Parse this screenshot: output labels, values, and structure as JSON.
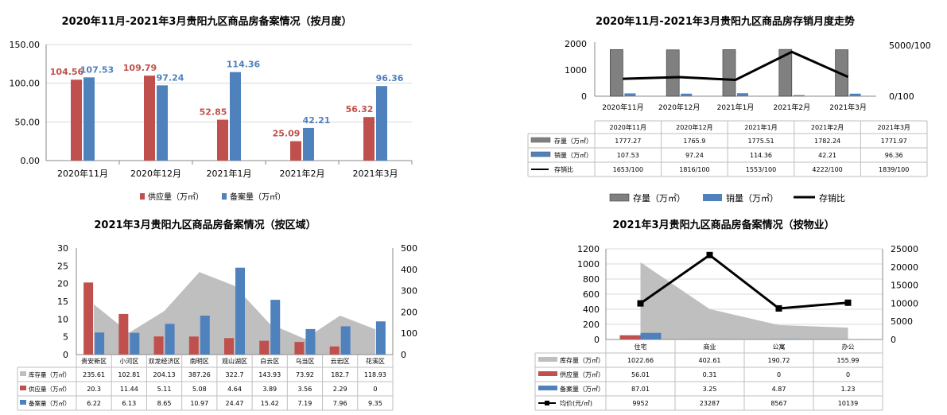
{
  "colors": {
    "supply": "#C0504D",
    "record": "#4F81BD",
    "stock": "#808080",
    "stock_area": "#BFBFBF",
    "price": "#000000"
  },
  "chart_data": [
    {
      "id": "c1",
      "type": "bar",
      "title": "2020年11月-2021年3月贵阳九区商品房备案情况（按月度）",
      "categories": [
        "2020年11月",
        "2020年12月",
        "2021年1月",
        "2021年2月",
        "2021年3月"
      ],
      "series": [
        {
          "name": "供应量（万㎡）",
          "values": [
            104.56,
            109.79,
            52.85,
            25.09,
            56.32
          ],
          "labels": [
            "104.56",
            "109.79",
            "52.85",
            "25.09",
            "56.32"
          ]
        },
        {
          "name": "备案量（万㎡）",
          "values": [
            107.53,
            97.24,
            114.36,
            42.21,
            96.36
          ],
          "labels": [
            "107.53",
            "97.24",
            "114.36",
            "42.21",
            "96.36"
          ]
        }
      ],
      "ylim": [
        0,
        150
      ],
      "yticks": [
        "0.00",
        "50.00",
        "100.00",
        "150.00"
      ]
    },
    {
      "id": "c2",
      "type": "bar",
      "title": "2020年11月-2021年3月贵阳九区商品房存销月度走势",
      "categories": [
        "2020年11月",
        "2020年12月",
        "2021年1月",
        "2021年2月",
        "2021年3月"
      ],
      "series": [
        {
          "name": "存量（万㎡）",
          "values": [
            1777.27,
            1765.9,
            1775.51,
            1782.24,
            1771.97
          ],
          "labels": [
            "1777.27",
            "1765.9",
            "1775.51",
            "1782.24",
            "1771.97"
          ]
        },
        {
          "name": "销量（万㎡）",
          "values": [
            107.53,
            97.24,
            114.36,
            42.21,
            96.36
          ],
          "labels": [
            "107.53",
            "97.24",
            "114.36",
            "42.21",
            "96.36"
          ]
        },
        {
          "name": "存销比",
          "values": [
            1653,
            1816,
            1553,
            4222,
            1839
          ],
          "labels": [
            "1653/100",
            "1816/100",
            "1553/100",
            "4222/100",
            "1839/100"
          ]
        }
      ],
      "ylim": [
        0,
        2000
      ],
      "yticks": [
        "0",
        "1000",
        "2000"
      ],
      "y2lim": [
        0,
        5000
      ],
      "y2ticks": [
        "0/100",
        "5000/100"
      ],
      "legend": [
        "存量（万㎡）",
        "销量（万㎡）",
        "存销比"
      ]
    },
    {
      "id": "c3",
      "type": "bar",
      "title": "2021年3月贵阳九区商品房备案情况（按区域）",
      "categories": [
        "贵安新区",
        "小河区",
        "双龙经济区",
        "南明区",
        "观山湖区",
        "白云区",
        "乌当区",
        "云岩区",
        "花溪区"
      ],
      "series": [
        {
          "name": "库存量（万㎡）",
          "values": [
            235.61,
            102.81,
            204.13,
            387.26,
            322.7,
            143.93,
            73.92,
            182.7,
            118.93
          ],
          "labels": [
            "235.61",
            "102.81",
            "204.13",
            "387.26",
            "322.7",
            "143.93",
            "73.92",
            "182.7",
            "118.93"
          ]
        },
        {
          "name": "供应量（万㎡）",
          "values": [
            20.3,
            11.44,
            5.11,
            5.08,
            4.64,
            3.89,
            3.56,
            2.29,
            0
          ],
          "labels": [
            "20.3",
            "11.44",
            "5.11",
            "5.08",
            "4.64",
            "3.89",
            "3.56",
            "2.29",
            "0"
          ]
        },
        {
          "name": "备案量（万㎡）",
          "values": [
            6.22,
            6.13,
            8.65,
            10.97,
            24.47,
            15.42,
            7.19,
            7.96,
            9.35
          ],
          "labels": [
            "6.22",
            "6.13",
            "8.65",
            "10.97",
            "24.47",
            "15.42",
            "7.19",
            "7.96",
            "9.35"
          ]
        }
      ],
      "ylim": [
        0,
        30
      ],
      "yticks": [
        "0",
        "5",
        "10",
        "15",
        "20",
        "25",
        "30"
      ],
      "y2lim": [
        0,
        500
      ],
      "y2ticks": [
        "0",
        "100",
        "200",
        "300",
        "400",
        "500"
      ]
    },
    {
      "id": "c4",
      "type": "bar",
      "title": "2021年3月贵阳九区商品房备案情况（按物业）",
      "categories": [
        "住宅",
        "商业",
        "公寓",
        "办公"
      ],
      "series": [
        {
          "name": "库存量（万㎡）",
          "values": [
            1022.66,
            402.61,
            190.72,
            155.99
          ],
          "labels": [
            "1022.66",
            "402.61",
            "190.72",
            "155.99"
          ]
        },
        {
          "name": "供应量（万㎡）",
          "values": [
            56.01,
            0.31,
            0,
            0
          ],
          "labels": [
            "56.01",
            "0.31",
            "0",
            "0"
          ]
        },
        {
          "name": "备案量（万㎡）",
          "values": [
            87.01,
            3.25,
            4.87,
            1.23
          ],
          "labels": [
            "87.01",
            "3.25",
            "4.87",
            "1.23"
          ]
        },
        {
          "name": "均价(元/㎡)",
          "values": [
            9952,
            23287,
            8567,
            10139
          ],
          "labels": [
            "9952",
            "23287",
            "8567",
            "10139"
          ]
        }
      ],
      "ylim": [
        0,
        1200
      ],
      "yticks": [
        "0",
        "200",
        "400",
        "600",
        "800",
        "1000",
        "1200"
      ],
      "y2lim": [
        0,
        25000
      ],
      "y2ticks": [
        "0",
        "5000",
        "10000",
        "15000",
        "20000",
        "25000"
      ]
    }
  ]
}
